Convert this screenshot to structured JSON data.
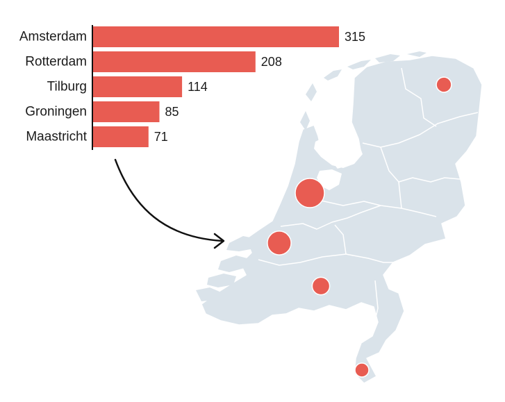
{
  "chart_data": {
    "type": "bar",
    "orientation": "horizontal",
    "categories": [
      "Amsterdam",
      "Rotterdam",
      "Tilburg",
      "Groningen",
      "Maastricht"
    ],
    "values": [
      315,
      208,
      114,
      85,
      71
    ],
    "xlim": [
      0,
      315
    ],
    "grid": false,
    "legend": "none"
  },
  "map": {
    "region": "Netherlands",
    "markers": [
      {
        "city": "Amsterdam",
        "value": 315
      },
      {
        "city": "Rotterdam",
        "value": 208
      },
      {
        "city": "Tilburg",
        "value": 114
      },
      {
        "city": "Groningen",
        "value": 85
      },
      {
        "city": "Maastricht",
        "value": 71
      }
    ]
  },
  "colors": {
    "bar": "#e85c52",
    "marker": "#e85c52",
    "land": "#dae3ea",
    "border": "#ffffff",
    "axis": "#111111",
    "text": "#1b1b1b"
  }
}
